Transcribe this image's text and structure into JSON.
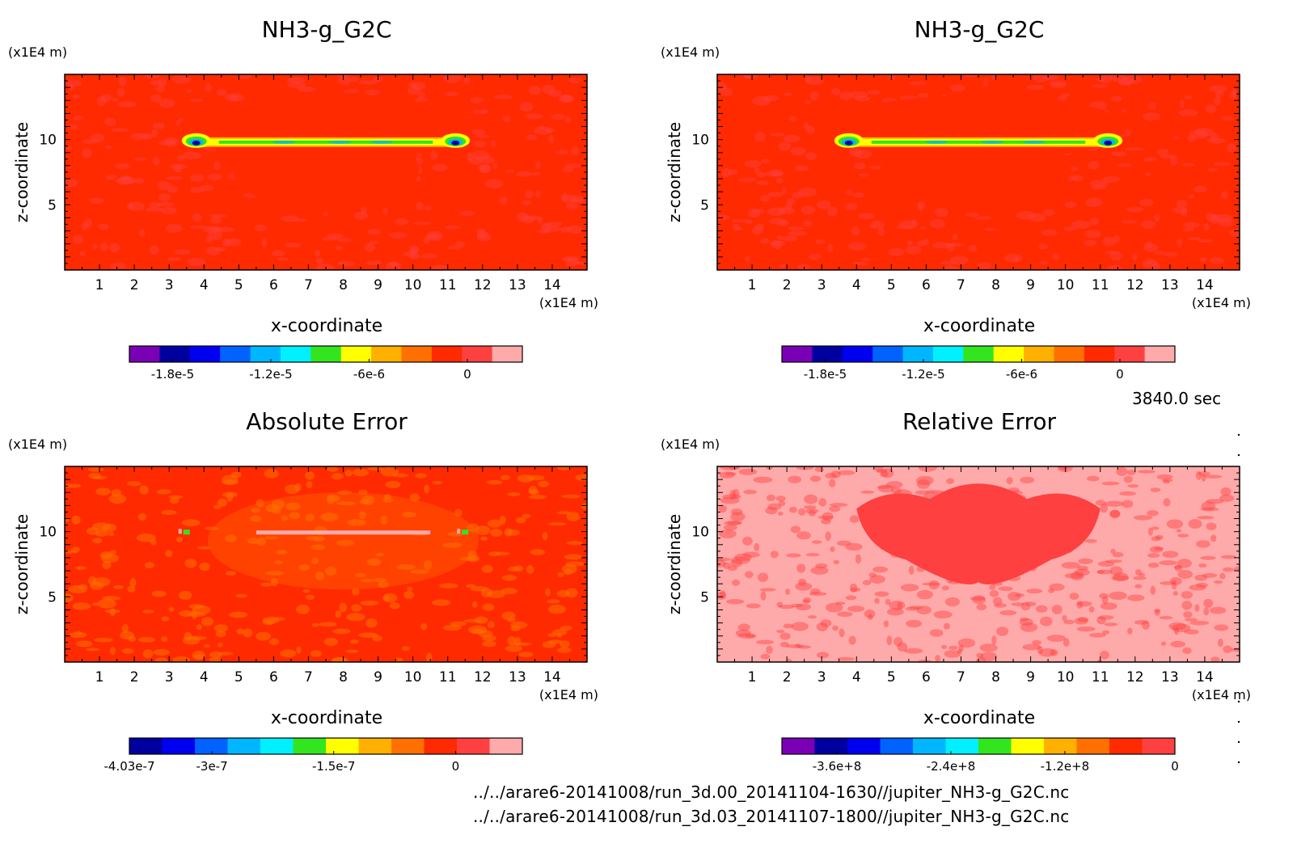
{
  "panels": [
    {
      "title": "NH3-g_G2C",
      "unit_z": "(x1E4 m)",
      "unit_x": "(x1E4 m)",
      "ylabel": "z-coordinate",
      "xlabel": "x-coordinate",
      "x_ticks": [
        "1",
        "2",
        "3",
        "4",
        "5",
        "6",
        "7",
        "8",
        "9",
        "10",
        "11",
        "12",
        "13",
        "14"
      ],
      "y_ticks": [
        "5",
        "10"
      ],
      "colorbar": {
        "colors": [
          "#7a00b5",
          "#0000a0",
          "#0000f0",
          "#0062ff",
          "#00b7ff",
          "#00f0ff",
          "#33e51f",
          "#ffff00",
          "#ffb000",
          "#ff7000",
          "#ff2a00",
          "#ff4040",
          "#ffaaaa"
        ],
        "labels": [
          "-1.8e-5",
          "-1.2e-5",
          "-6e-6",
          "0"
        ]
      }
    },
    {
      "title": "NH3-g_G2C",
      "unit_z": "(x1E4 m)",
      "unit_x": "(x1E4 m)",
      "ylabel": "z-coordinate",
      "xlabel": "x-coordinate",
      "x_ticks": [
        "1",
        "2",
        "3",
        "4",
        "5",
        "6",
        "7",
        "8",
        "9",
        "10",
        "11",
        "12",
        "13",
        "14"
      ],
      "y_ticks": [
        "5",
        "10"
      ],
      "colorbar": {
        "colors": [
          "#7a00b5",
          "#0000a0",
          "#0000f0",
          "#0062ff",
          "#00b7ff",
          "#00f0ff",
          "#33e51f",
          "#ffff00",
          "#ffb000",
          "#ff7000",
          "#ff2a00",
          "#ff4040",
          "#ffaaaa"
        ],
        "labels": [
          "-1.8e-5",
          "-1.2e-5",
          "-6e-6",
          "0"
        ]
      }
    },
    {
      "title": "Absolute Error",
      "unit_z": "(x1E4 m)",
      "unit_x": "(x1E4 m)",
      "ylabel": "z-coordinate",
      "xlabel": "x-coordinate",
      "x_ticks": [
        "1",
        "2",
        "3",
        "4",
        "5",
        "6",
        "7",
        "8",
        "9",
        "10",
        "11",
        "12",
        "13",
        "14"
      ],
      "y_ticks": [
        "5",
        "10"
      ],
      "colorbar": {
        "colors": [
          "#0000a0",
          "#0000f0",
          "#0062ff",
          "#00b7ff",
          "#00f0ff",
          "#33e51f",
          "#ffff00",
          "#ffb000",
          "#ff7000",
          "#ff2a00",
          "#ff4040",
          "#ffaaaa"
        ],
        "labels": [
          "-4.03e-7",
          "-3e-7",
          "-1.5e-7",
          "0"
        ]
      }
    },
    {
      "title": "Relative Error",
      "unit_z": "(x1E4 m)",
      "unit_x": "(x1E4 m)",
      "ylabel": "z-coordinate",
      "xlabel": "x-coordinate",
      "x_ticks": [
        "1",
        "2",
        "3",
        "4",
        "5",
        "6",
        "7",
        "8",
        "9",
        "10",
        "11",
        "12",
        "13",
        "14"
      ],
      "y_ticks": [
        "5",
        "10"
      ],
      "colorbar": {
        "colors": [
          "#7a00b5",
          "#0000a0",
          "#0000f0",
          "#0062ff",
          "#00b7ff",
          "#00f0ff",
          "#33e51f",
          "#ffff00",
          "#ffb000",
          "#ff7000",
          "#ff2a00",
          "#ff4040"
        ],
        "labels": [
          "-3.6e+8",
          "-2.4e+8",
          "-1.2e+8",
          "0"
        ]
      }
    }
  ],
  "time_stamp": "3840.0 sec",
  "file_paths": [
    "../../arare6-20141008/run_3d.00_20141104-1630//jupiter_NH3-g_G2C.nc",
    "../../arare6-20141008/run_3d.03_20141107-1800//jupiter_NH3-g_G2C.nc"
  ],
  "chart_data": [
    {
      "type": "heatmap",
      "title": "NH3-g_G2C",
      "xlabel": "x-coordinate",
      "ylabel": "z-coordinate",
      "xlim": [
        0,
        15
      ],
      "ylim": [
        0,
        15
      ],
      "x_ticks": [
        1,
        2,
        3,
        4,
        5,
        6,
        7,
        8,
        9,
        10,
        11,
        12,
        13,
        14
      ],
      "y_ticks": [
        5,
        10
      ],
      "units": "(x1E4 m)",
      "colorbar_ticks": [
        "-1.8e-5",
        "-1.2e-5",
        "-6e-6",
        "0"
      ],
      "background_color": "#ff2a00",
      "features": [
        {
          "shape": "thin layer",
          "x_range": [
            3.5,
            11.5
          ],
          "z": 9.8,
          "min_value": "-1.8e-5",
          "colors": [
            "#0000a0",
            "#00b7ff",
            "#33e51f",
            "#ffff00",
            "#ffb000"
          ]
        }
      ]
    },
    {
      "type": "heatmap",
      "title": "NH3-g_G2C",
      "xlabel": "x-coordinate",
      "ylabel": "z-coordinate",
      "xlim": [
        0,
        15
      ],
      "ylim": [
        0,
        15
      ],
      "x_ticks": [
        1,
        2,
        3,
        4,
        5,
        6,
        7,
        8,
        9,
        10,
        11,
        12,
        13,
        14
      ],
      "y_ticks": [
        5,
        10
      ],
      "units": "(x1E4 m)",
      "colorbar_ticks": [
        "-1.8e-5",
        "-1.2e-5",
        "-6e-6",
        "0"
      ],
      "background_color": "#ff2a00",
      "features": [
        {
          "shape": "thin layer",
          "x_range": [
            3.5,
            11.5
          ],
          "z": 9.8,
          "min_value": "-1.8e-5",
          "colors": [
            "#0000a0",
            "#00b7ff",
            "#33e51f",
            "#ffff00",
            "#ffb000"
          ]
        }
      ]
    },
    {
      "type": "heatmap",
      "title": "Absolute Error",
      "xlabel": "x-coordinate",
      "ylabel": "z-coordinate",
      "xlim": [
        0,
        15
      ],
      "ylim": [
        0,
        15
      ],
      "x_ticks": [
        1,
        2,
        3,
        4,
        5,
        6,
        7,
        8,
        9,
        10,
        11,
        12,
        13,
        14
      ],
      "y_ticks": [
        5,
        10
      ],
      "units": "(x1E4 m)",
      "colorbar_ticks": [
        "-4.03e-7",
        "-3e-7",
        "-1.5e-7",
        "0"
      ],
      "background_color": "#ff2a00",
      "features": [
        {
          "shape": "thin layer",
          "x_range": [
            5.5,
            10.5
          ],
          "z": 9.9,
          "colors": [
            "#ffaaaa"
          ]
        }
      ]
    },
    {
      "type": "heatmap",
      "title": "Relative Error",
      "xlabel": "x-coordinate",
      "ylabel": "z-coordinate",
      "xlim": [
        0,
        15
      ],
      "ylim": [
        0,
        15
      ],
      "x_ticks": [
        1,
        2,
        3,
        4,
        5,
        6,
        7,
        8,
        9,
        10,
        11,
        12,
        13,
        14
      ],
      "y_ticks": [
        5,
        10
      ],
      "units": "(x1E4 m)",
      "colorbar_ticks": [
        "-3.6e+8",
        "-2.4e+8",
        "-1.2e+8",
        "0"
      ],
      "background_color": "#ffaaaa",
      "features": [
        {
          "shape": "central lobe",
          "x_range": [
            4,
            11
          ],
          "z_range": [
            6,
            13
          ],
          "colors": [
            "#ff4040"
          ]
        }
      ]
    }
  ]
}
